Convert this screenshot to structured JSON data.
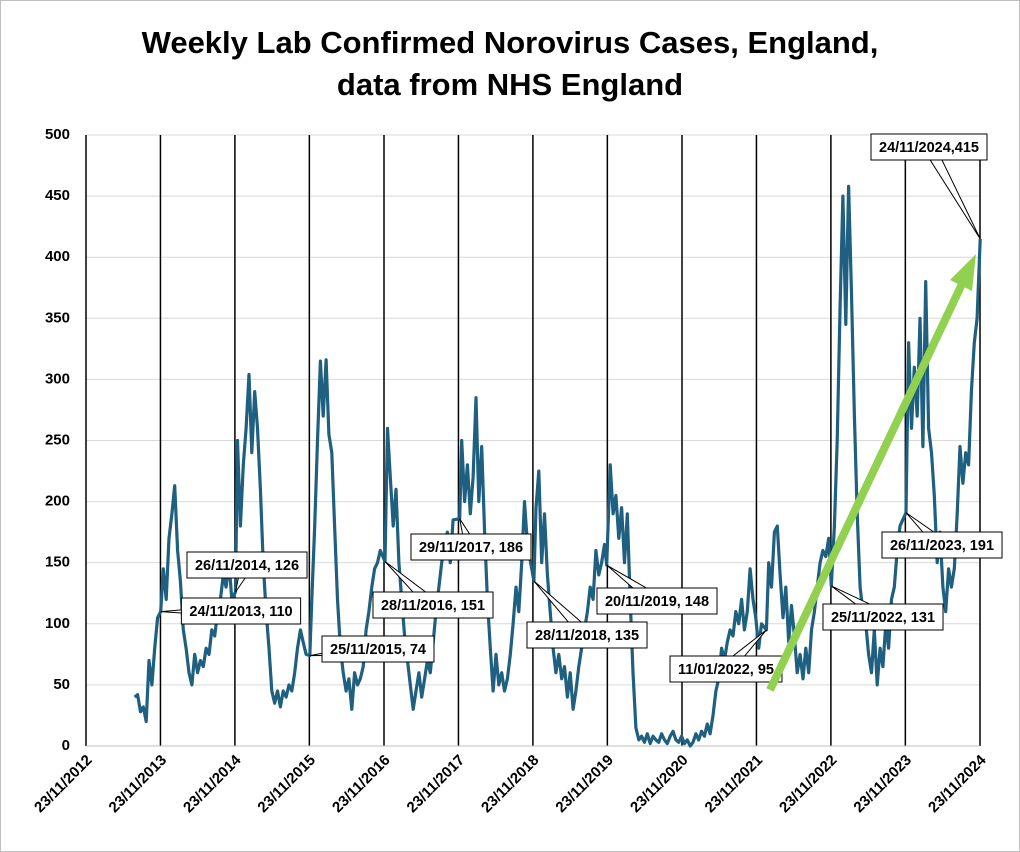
{
  "chart_data": {
    "type": "line",
    "title": "Weekly Lab Confirmed Norovirus Cases, England,",
    "subtitle": "data from NHS England",
    "color": "#1f5f7f",
    "grid": true,
    "x": [
      "2013-07-20",
      "2013-08-03",
      "2013-08-17",
      "2013-08-31",
      "2013-09-14",
      "2013-09-28",
      "2013-10-12",
      "2013-10-26",
      "2013-11-09",
      "2013-11-24",
      "2013-12-07",
      "2013-12-21",
      "2014-01-04",
      "2014-01-18",
      "2014-02-01",
      "2014-02-15",
      "2014-03-01",
      "2014-03-15",
      "2014-03-29",
      "2014-04-12",
      "2014-04-26",
      "2014-05-10",
      "2014-05-24",
      "2014-06-07",
      "2014-06-21",
      "2014-07-05",
      "2014-07-19",
      "2014-08-02",
      "2014-08-16",
      "2014-08-30",
      "2014-09-13",
      "2014-09-27",
      "2014-10-11",
      "2014-10-25",
      "2014-11-08",
      "2014-11-26",
      "2014-12-06",
      "2014-12-20",
      "2015-01-03",
      "2015-01-17",
      "2015-01-31",
      "2015-02-14",
      "2015-02-28",
      "2015-03-14",
      "2015-03-28",
      "2015-04-11",
      "2015-04-25",
      "2015-05-09",
      "2015-05-23",
      "2015-06-06",
      "2015-06-20",
      "2015-07-04",
      "2015-07-18",
      "2015-08-01",
      "2015-08-15",
      "2015-08-29",
      "2015-09-12",
      "2015-09-26",
      "2015-10-10",
      "2015-10-24",
      "2015-11-07",
      "2015-11-25",
      "2015-12-05",
      "2015-12-19",
      "2016-01-02",
      "2016-01-16",
      "2016-01-30",
      "2016-02-13",
      "2016-02-27",
      "2016-03-12",
      "2016-03-26",
      "2016-04-09",
      "2016-04-23",
      "2016-05-07",
      "2016-05-21",
      "2016-06-04",
      "2016-06-18",
      "2016-07-02",
      "2016-07-16",
      "2016-07-30",
      "2016-08-13",
      "2016-08-27",
      "2016-09-10",
      "2016-09-24",
      "2016-10-08",
      "2016-10-22",
      "2016-11-05",
      "2016-11-28",
      "2016-12-10",
      "2016-12-24",
      "2017-01-07",
      "2017-01-21",
      "2017-02-04",
      "2017-02-18",
      "2017-03-04",
      "2017-03-18",
      "2017-04-01",
      "2017-04-15",
      "2017-04-29",
      "2017-05-13",
      "2017-05-27",
      "2017-06-10",
      "2017-06-24",
      "2017-07-08",
      "2017-07-22",
      "2017-08-05",
      "2017-08-19",
      "2017-09-02",
      "2017-09-16",
      "2017-09-30",
      "2017-10-14",
      "2017-10-28",
      "2017-11-29",
      "2017-12-09",
      "2017-12-23",
      "2018-01-06",
      "2018-01-20",
      "2018-02-03",
      "2018-02-17",
      "2018-03-03",
      "2018-03-17",
      "2018-03-31",
      "2018-04-14",
      "2018-04-28",
      "2018-05-12",
      "2018-05-26",
      "2018-06-09",
      "2018-06-23",
      "2018-07-07",
      "2018-07-21",
      "2018-08-04",
      "2018-08-18",
      "2018-09-01",
      "2018-09-15",
      "2018-09-29",
      "2018-10-13",
      "2018-10-27",
      "2018-11-28",
      "2018-12-08",
      "2018-12-22",
      "2019-01-05",
      "2019-01-19",
      "2019-02-02",
      "2019-02-16",
      "2019-03-02",
      "2019-03-16",
      "2019-03-30",
      "2019-04-13",
      "2019-04-27",
      "2019-05-11",
      "2019-05-25",
      "2019-06-08",
      "2019-06-22",
      "2019-07-06",
      "2019-07-20",
      "2019-08-03",
      "2019-08-17",
      "2019-08-31",
      "2019-09-14",
      "2019-09-28",
      "2019-10-12",
      "2019-10-26",
      "2019-11-09",
      "2019-11-20",
      "2019-12-07",
      "2019-12-21",
      "2020-01-04",
      "2020-01-18",
      "2020-02-01",
      "2020-02-15",
      "2020-02-29",
      "2020-03-14",
      "2020-03-28",
      "2020-04-11",
      "2020-04-25",
      "2020-05-09",
      "2020-05-23",
      "2020-06-06",
      "2020-06-20",
      "2020-07-04",
      "2020-07-18",
      "2020-08-01",
      "2020-08-15",
      "2020-08-29",
      "2020-09-12",
      "2020-09-26",
      "2020-10-10",
      "2020-10-24",
      "2020-11-07",
      "2020-11-21",
      "2020-12-05",
      "2020-12-19",
      "2021-01-02",
      "2021-01-16",
      "2021-01-30",
      "2021-02-13",
      "2021-02-27",
      "2021-03-13",
      "2021-03-27",
      "2021-04-10",
      "2021-04-24",
      "2021-05-08",
      "2021-05-22",
      "2021-06-05",
      "2021-06-19",
      "2021-07-03",
      "2021-07-17",
      "2021-07-31",
      "2021-08-14",
      "2021-08-28",
      "2021-09-11",
      "2021-09-25",
      "2021-10-09",
      "2021-10-23",
      "2021-11-06",
      "2021-11-20",
      "2021-12-04",
      "2021-12-18",
      "2022-01-11",
      "2022-01-22",
      "2022-02-05",
      "2022-02-19",
      "2022-03-05",
      "2022-03-19",
      "2022-04-02",
      "2022-04-16",
      "2022-04-30",
      "2022-05-14",
      "2022-05-28",
      "2022-06-11",
      "2022-06-25",
      "2022-07-09",
      "2022-07-23",
      "2022-08-06",
      "2022-08-20",
      "2022-09-03",
      "2022-09-17",
      "2022-10-01",
      "2022-10-15",
      "2022-10-29",
      "2022-11-12",
      "2022-11-25",
      "2022-12-10",
      "2022-12-24",
      "2023-01-07",
      "2023-01-21",
      "2023-02-04",
      "2023-02-18",
      "2023-03-04",
      "2023-03-18",
      "2023-04-01",
      "2023-04-15",
      "2023-04-29",
      "2023-05-13",
      "2023-05-27",
      "2023-06-10",
      "2023-06-24",
      "2023-07-08",
      "2023-07-22",
      "2023-08-05",
      "2023-08-19",
      "2023-09-02",
      "2023-09-16",
      "2023-09-30",
      "2023-10-14",
      "2023-10-28",
      "2023-11-26",
      "2023-12-09",
      "2023-12-23",
      "2024-01-06",
      "2024-01-20",
      "2024-02-03",
      "2024-02-17",
      "2024-03-02",
      "2024-03-16",
      "2024-03-30",
      "2024-04-13",
      "2024-04-27",
      "2024-05-11",
      "2024-05-25",
      "2024-06-08",
      "2024-06-22",
      "2024-07-06",
      "2024-07-20",
      "2024-08-03",
      "2024-08-17",
      "2024-08-31",
      "2024-09-14",
      "2024-09-28",
      "2024-10-12",
      "2024-10-26",
      "2024-11-09",
      "2024-11-24"
    ],
    "values": [
      40,
      42,
      28,
      32,
      20,
      70,
      50,
      80,
      105,
      110,
      145,
      120,
      170,
      190,
      213,
      160,
      135,
      95,
      80,
      60,
      50,
      75,
      60,
      70,
      65,
      80,
      75,
      95,
      90,
      110,
      120,
      140,
      130,
      150,
      120,
      126,
      250,
      180,
      230,
      260,
      304,
      240,
      290,
      260,
      210,
      150,
      110,
      80,
      45,
      35,
      45,
      32,
      45,
      40,
      50,
      45,
      60,
      80,
      95,
      85,
      75,
      74,
      120,
      180,
      250,
      315,
      270,
      316,
      255,
      240,
      180,
      120,
      80,
      60,
      45,
      55,
      30,
      60,
      50,
      55,
      65,
      95,
      110,
      130,
      145,
      150,
      160,
      151,
      260,
      220,
      180,
      210,
      150,
      120,
      90,
      70,
      50,
      30,
      45,
      60,
      40,
      55,
      70,
      60,
      85,
      110,
      130,
      150,
      165,
      175,
      150,
      185,
      186,
      250,
      200,
      230,
      190,
      220,
      285,
      200,
      245,
      175,
      120,
      80,
      45,
      75,
      50,
      60,
      45,
      55,
      75,
      100,
      130,
      110,
      150,
      200,
      165,
      135,
      195,
      225,
      150,
      190,
      140,
      110,
      80,
      60,
      75,
      55,
      65,
      40,
      60,
      30,
      45,
      65,
      80,
      95,
      110,
      130,
      120,
      160,
      140,
      150,
      165,
      148,
      230,
      190,
      205,
      170,
      195,
      150,
      190,
      120,
      60,
      15,
      5,
      8,
      3,
      10,
      2,
      8,
      5,
      3,
      10,
      5,
      2,
      8,
      12,
      5,
      3,
      8,
      2,
      5,
      0,
      3,
      10,
      5,
      12,
      8,
      18,
      10,
      25,
      45,
      55,
      80,
      70,
      85,
      95,
      90,
      110,
      100,
      120,
      95,
      110,
      145,
      120,
      105,
      80,
      100,
      95,
      150,
      130,
      175,
      180,
      140,
      105,
      130,
      85,
      115,
      90,
      60,
      75,
      55,
      80,
      60,
      95,
      110,
      130,
      150,
      160,
      155,
      170,
      131,
      180,
      250,
      360,
      450,
      345,
      458,
      370,
      270,
      190,
      130,
      110,
      100,
      75,
      60,
      95,
      50,
      80,
      65,
      100,
      80,
      120,
      130,
      160,
      180,
      191,
      330,
      260,
      310,
      270,
      350,
      245,
      380,
      260,
      240,
      205,
      150,
      175,
      130,
      110,
      145,
      130,
      145,
      190,
      245,
      215,
      240,
      230,
      290,
      330,
      350,
      415
    ],
    "xlim": [
      "2012-11-23",
      "2024-11-23"
    ],
    "xticks": [
      {
        "value": "2012-11-23",
        "label": "23/11/2012"
      },
      {
        "value": "2013-11-23",
        "label": "23/11/2013"
      },
      {
        "value": "2014-11-23",
        "label": "23/11/2014"
      },
      {
        "value": "2015-11-23",
        "label": "23/11/2015"
      },
      {
        "value": "2016-11-23",
        "label": "23/11/2016"
      },
      {
        "value": "2017-11-23",
        "label": "23/11/2017"
      },
      {
        "value": "2018-11-23",
        "label": "23/11/2018"
      },
      {
        "value": "2019-11-23",
        "label": "23/11/2019"
      },
      {
        "value": "2020-11-23",
        "label": "23/11/2020"
      },
      {
        "value": "2021-11-23",
        "label": "23/11/2021"
      },
      {
        "value": "2022-11-23",
        "label": "23/11/2022"
      },
      {
        "value": "2023-11-23",
        "label": "23/11/2023"
      },
      {
        "value": "2024-11-23",
        "label": "23/11/2024"
      }
    ],
    "ylim": [
      0,
      500
    ],
    "yticks": [
      0,
      50,
      100,
      150,
      200,
      250,
      300,
      350,
      400,
      450,
      500
    ],
    "annotations": [
      {
        "text": "26/11/2014, 126",
        "x": "2014-11-26",
        "y": 126
      },
      {
        "text": "24/11/2013, 110",
        "x": "2013-11-24",
        "y": 110
      },
      {
        "text": "25/11/2015, 74",
        "x": "2015-11-25",
        "y": 74
      },
      {
        "text": "28/11/2016, 151",
        "x": "2016-11-28",
        "y": 151
      },
      {
        "text": "29/11/2017, 186",
        "x": "2017-11-29",
        "y": 186
      },
      {
        "text": "28/11/2018, 135",
        "x": "2018-11-28",
        "y": 135
      },
      {
        "text": "20/11/2019, 148",
        "x": "2019-11-20",
        "y": 148
      },
      {
        "text": "11/01/2022, 95",
        "x": "2022-01-11",
        "y": 95
      },
      {
        "text": "25/11/2022, 131",
        "x": "2022-11-25",
        "y": 131
      },
      {
        "text": "26/11/2023, 191",
        "x": "2023-11-26",
        "y": 191
      },
      {
        "text": "24/11/2024,415",
        "x": "2024-11-24",
        "y": 415
      }
    ]
  }
}
